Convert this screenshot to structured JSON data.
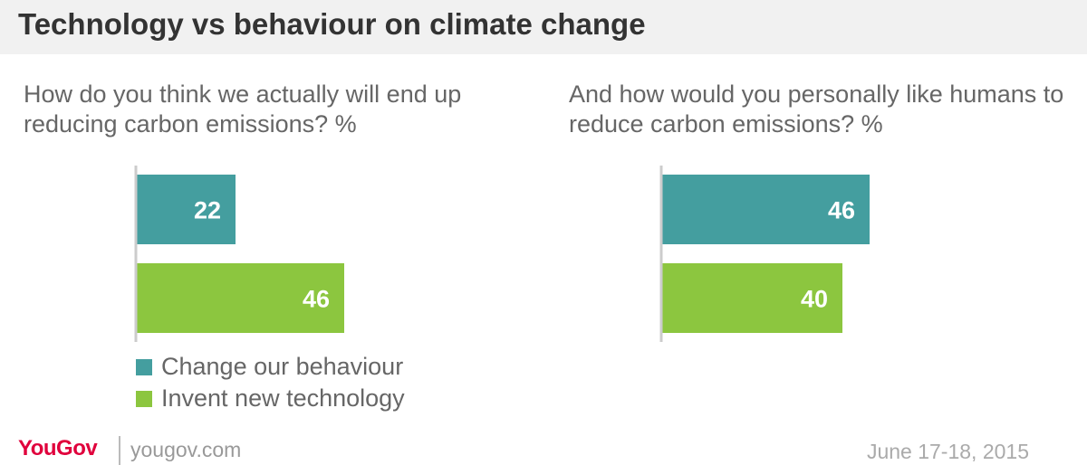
{
  "title": "Technology vs behaviour on climate change",
  "colors": {
    "behaviour": "#449e9f",
    "technology": "#8cc63f",
    "brand": "#e0003c"
  },
  "chart_data": [
    {
      "type": "bar",
      "orientation": "horizontal",
      "subtitle": "How do you think we actually will end up reducing carbon emissions? %",
      "categories": [
        "Change our behaviour",
        "Invent new technology"
      ],
      "values": [
        22,
        46
      ],
      "value_labels": [
        "22",
        "46"
      ],
      "legend": "bottom-left"
    },
    {
      "type": "bar",
      "orientation": "horizontal",
      "subtitle": "And how would you personally like humans to reduce carbon emissions? %",
      "categories": [
        "Change our behaviour",
        "Invent new technology"
      ],
      "values": [
        46,
        40
      ],
      "value_labels": [
        "46",
        "40"
      ]
    }
  ],
  "legend": {
    "items": [
      "Change our behaviour",
      "Invent new technology"
    ]
  },
  "footer": {
    "logo": "YouGov",
    "site": "yougov.com",
    "date": "June 17-18, 2015"
  }
}
